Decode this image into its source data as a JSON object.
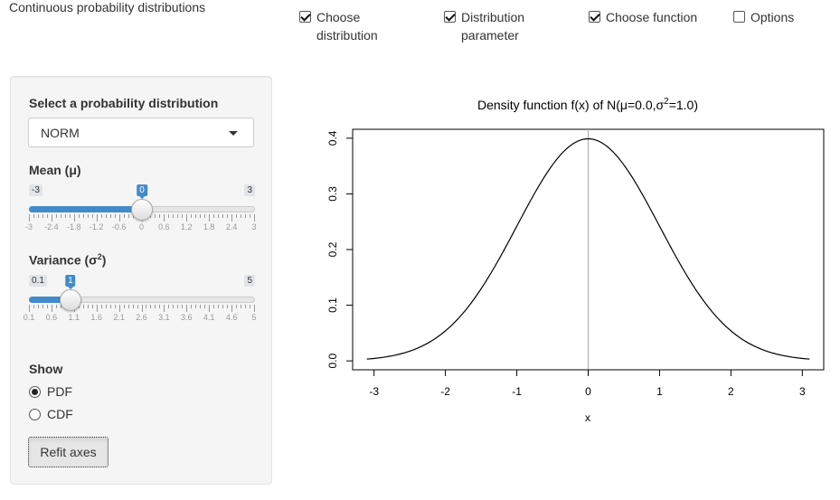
{
  "app": {
    "title": "Continuous probability distributions"
  },
  "options": [
    {
      "line1": "Choose",
      "line2": "distribution",
      "checked": true
    },
    {
      "line1": "Distribution",
      "line2": "parameter",
      "checked": true
    },
    {
      "line1": "Choose function",
      "line2": "",
      "checked": true
    },
    {
      "line1": "Options",
      "line2": "",
      "checked": false
    }
  ],
  "sidebar": {
    "distribution": {
      "label": "Select a probability distribution",
      "value": "NORM"
    },
    "mean": {
      "label": "Mean (μ)",
      "min": -3,
      "max": 3,
      "value": 0,
      "min_label": "-3",
      "max_label": "3",
      "value_label": "0",
      "grid_labels": [
        "-3",
        "-2.4",
        "-1.8",
        "-1.2",
        "-0.6",
        "0",
        "0.6",
        "1.2",
        "1.8",
        "2.4",
        "3"
      ]
    },
    "variance": {
      "label": "Variance (σ",
      "label_sup": "2",
      "label_end": ")",
      "min": 0.1,
      "max": 5,
      "value": 1,
      "min_label": "0.1",
      "max_label": "5",
      "value_label": "1",
      "grid_labels": [
        "0.1",
        "0.6",
        "1.1",
        "1.6",
        "2.1",
        "2.6",
        "3.1",
        "3.6",
        "4.1",
        "4.6",
        "5"
      ]
    },
    "show": {
      "label": "Show",
      "options": [
        "PDF",
        "CDF"
      ],
      "selected": "PDF"
    },
    "refit_label": "Refit axes"
  },
  "chart_data": {
    "type": "line",
    "title_pre": "Density function f(x) of N(μ=0.0,σ",
    "title_sup": "2",
    "title_post": "=1.0)",
    "xlabel": "x",
    "ylabel": "",
    "xlim": [
      -3.1,
      3.1
    ],
    "ylim": [
      0,
      0.4
    ],
    "xticks": [
      -3,
      -2,
      -1,
      0,
      1,
      2,
      3
    ],
    "yticks": [
      0.0,
      0.1,
      0.2,
      0.3,
      0.4
    ],
    "ytick_labels": [
      "0.0",
      "0.1",
      "0.2",
      "0.3",
      "0.4"
    ],
    "vline_x": 0,
    "series": [
      {
        "mu": 0.0,
        "sigma2": 1.0
      }
    ]
  }
}
